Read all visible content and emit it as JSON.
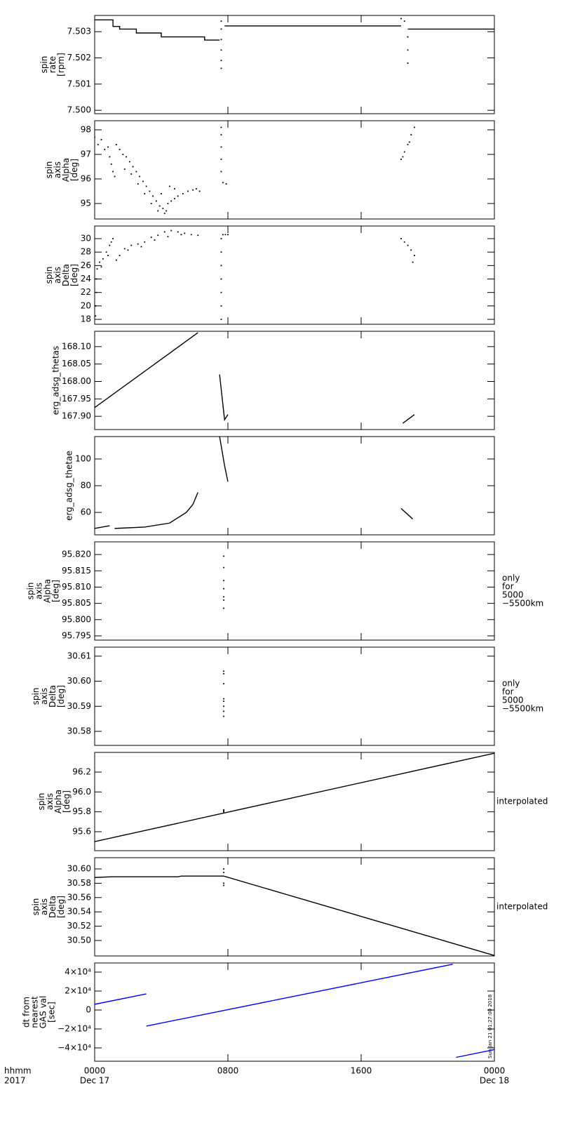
{
  "chart_data": [
    {
      "type": "line",
      "ylabel": [
        "spin",
        "rate",
        "[rpm]"
      ],
      "xlim": [
        0,
        24
      ],
      "ylim": [
        7.49987,
        7.50362
      ],
      "yticks": [
        {
          "value": 7.5,
          "label": "7.500"
        },
        7.501,
        7.502,
        7.503
      ],
      "series": [
        {
          "color": "#000000",
          "x": [
            0,
            1.1,
            1.1,
            1.5,
            1.5,
            2.5,
            2.5,
            4.0,
            4.0,
            6.6,
            6.6,
            7.5,
            7.55,
            7.8,
            18.4,
            18.5,
            18.8,
            24
          ],
          "values": [
            7.50345,
            7.50345,
            7.5032,
            7.5032,
            7.5031,
            7.5031,
            7.50295,
            7.50295,
            7.5028,
            7.5028,
            7.50268,
            7.50268,
            null,
            7.50322,
            7.50322,
            null,
            7.5031,
            7.5031
          ]
        },
        {
          "type": "scatter",
          "color": "#000000",
          "x": [
            7.6,
            7.6,
            7.6,
            7.6,
            7.6,
            7.6,
            18.4,
            18.6,
            18.8,
            18.8,
            18.8
          ],
          "values": [
            7.5016,
            7.5019,
            7.5023,
            7.5027,
            7.5031,
            7.5034,
            7.5035,
            7.5034,
            7.5018,
            7.5023,
            7.5028
          ]
        }
      ]
    },
    {
      "type": "scatter",
      "ylabel": [
        "spin",
        "axis",
        "Alpha",
        "[deg]"
      ],
      "xlim": [
        0,
        24
      ],
      "ylim": [
        94.37,
        98.37
      ],
      "yticks": [
        95,
        96,
        97,
        98
      ],
      "series": [
        {
          "color": "#000000",
          "x": [
            0.0,
            0.2,
            0.4,
            0.6,
            0.8,
            0.9,
            1.0,
            1.1,
            1.2,
            1.3,
            1.5,
            1.7,
            1.9,
            2.1,
            2.3,
            2.5,
            2.7,
            2.9,
            3.1,
            3.3,
            3.5,
            3.7,
            3.9,
            4.1,
            4.3,
            1.8,
            2.2,
            2.6,
            3.0,
            3.4,
            3.8,
            4.2,
            4.0,
            4.4,
            4.6,
            4.8,
            5.0,
            5.3,
            5.6,
            5.9,
            6.1,
            6.3,
            4.5,
            4.8,
            7.6,
            7.6,
            7.6,
            7.6,
            7.6,
            7.7,
            7.9,
            18.4,
            18.5,
            18.6,
            18.8,
            18.9,
            19.0,
            19.2
          ],
          "values": [
            97.7,
            97.4,
            97.6,
            97.2,
            97.3,
            96.9,
            96.6,
            96.3,
            96.1,
            97.4,
            97.2,
            97.0,
            96.9,
            96.7,
            96.5,
            96.3,
            96.1,
            95.9,
            95.7,
            95.5,
            95.3,
            95.1,
            94.9,
            94.8,
            94.7,
            96.4,
            96.2,
            95.8,
            95.4,
            95.0,
            94.7,
            94.6,
            95.4,
            95.0,
            95.1,
            95.2,
            95.3,
            95.4,
            95.5,
            95.55,
            95.6,
            95.5,
            95.7,
            95.6,
            96.3,
            96.8,
            97.3,
            97.8,
            98.1,
            95.85,
            95.8,
            96.8,
            96.9,
            97.1,
            97.4,
            97.5,
            97.8,
            98.1
          ]
        }
      ]
    },
    {
      "type": "scatter",
      "ylabel": [
        "spin",
        "axis",
        "Delta",
        "[deg]"
      ],
      "xlim": [
        0,
        24
      ],
      "ylim": [
        17.27,
        31.88
      ],
      "yticks": [
        18,
        20,
        22,
        24,
        26,
        28,
        30
      ],
      "series": [
        {
          "color": "#000000",
          "x": [
            0.05,
            0.05,
            0.1,
            0.1,
            0.15,
            0.3,
            0.5,
            0.7,
            0.9,
            0.4,
            0.8,
            1.0,
            1.1,
            1.3,
            1.5,
            1.8,
            2.2,
            2.6,
            3.0,
            3.4,
            3.8,
            4.2,
            4.6,
            5.0,
            5.4,
            5.8,
            6.2,
            2.0,
            2.8,
            3.6,
            4.4,
            5.2,
            7.6,
            7.6,
            7.6,
            7.6,
            7.6,
            7.6,
            7.6,
            7.7,
            7.85,
            8.0,
            18.4,
            18.6,
            18.8,
            19.0,
            19.2,
            19.1
          ],
          "values": [
            18.5,
            20,
            22,
            24,
            25.5,
            26.5,
            27,
            28,
            29,
            25.8,
            27.5,
            29.5,
            30,
            26.8,
            27.5,
            28.5,
            29,
            29.2,
            29.5,
            30.2,
            30.5,
            31,
            31.2,
            31,
            30.8,
            30.6,
            30.5,
            28.3,
            28.8,
            29.8,
            30.3,
            30.6,
            18,
            20,
            22,
            24,
            26,
            28,
            30,
            30.6,
            30.6,
            30.6,
            30,
            29.5,
            29,
            28.3,
            27.5,
            26.5
          ]
        }
      ]
    },
    {
      "type": "line",
      "ylabel": [
        "erg_adsg_thetas"
      ],
      "xlim": [
        0,
        24
      ],
      "ylim": [
        167.862,
        168.144
      ],
      "yticks": [
        {
          "value": 167.9,
          "label": "167.90"
        },
        167.95,
        {
          "value": 168.0,
          "label": "168.00"
        },
        168.05,
        {
          "value": 168.1,
          "label": "168.10"
        }
      ],
      "series": [
        {
          "color": "#000000",
          "x": [
            0,
            6.2,
            6.3,
            7.5,
            7.8,
            8.0,
            8.1,
            18.5,
            19.2
          ],
          "values": [
            167.925,
            168.14,
            null,
            168.02,
            167.89,
            167.905,
            null,
            167.88,
            167.905
          ]
        }
      ]
    },
    {
      "type": "line",
      "ylabel": [
        "erg_adsg_thetae"
      ],
      "xlim": [
        0,
        24
      ],
      "ylim": [
        43.2,
        116.8
      ],
      "yticks": [
        60,
        80,
        100
      ],
      "series": [
        {
          "color": "#000000",
          "x": [
            0,
            0.9,
            1.0,
            1.2,
            3,
            4.5,
            5.5,
            5.9,
            6.2,
            6.3,
            7.5,
            7.8,
            8.0,
            8.1,
            18.4,
            19.1
          ],
          "values": [
            48,
            50,
            null,
            48,
            49,
            52,
            60,
            66,
            75,
            null,
            117,
            95,
            83,
            null,
            63,
            55
          ]
        }
      ]
    },
    {
      "type": "scatter",
      "ylabel": [
        "spin",
        "axis",
        "Alpha",
        "[deg]"
      ],
      "xlim": [
        0,
        24
      ],
      "ylim": [
        95.7937,
        95.8239
      ],
      "yticks": [
        95.795,
        {
          "value": 95.8,
          "label": "95.800"
        },
        95.805,
        {
          "value": 95.81,
          "label": "95.810"
        },
        95.815,
        {
          "value": 95.82,
          "label": "95.820"
        }
      ],
      "annotation": [
        "only",
        "for",
        "5000",
        "−5500km"
      ],
      "series": [
        {
          "color": "#000000",
          "x": [
            7.75,
            7.75,
            7.75,
            7.75,
            7.75,
            7.75,
            7.75
          ],
          "values": [
            95.8195,
            95.816,
            95.812,
            95.8095,
            95.807,
            95.806,
            95.8035
          ]
        }
      ]
    },
    {
      "type": "scatter",
      "ylabel": [
        "spin",
        "axis",
        "Delta",
        "[deg]"
      ],
      "xlim": [
        0,
        24
      ],
      "ylim": [
        30.5744,
        30.6136
      ],
      "yticks": [
        30.58,
        30.59,
        {
          "value": 30.6,
          "label": "30.60"
        },
        30.61
      ],
      "annotation": [
        "only",
        "for",
        "5000",
        "−5500km"
      ],
      "series": [
        {
          "color": "#000000",
          "x": [
            7.75,
            7.75,
            7.75,
            7.75,
            7.75,
            7.75,
            7.75,
            7.75
          ],
          "values": [
            30.604,
            30.603,
            30.599,
            30.593,
            30.592,
            30.59,
            30.588,
            30.586
          ]
        }
      ]
    },
    {
      "type": "line",
      "ylabel": [
        "spin",
        "axis",
        "Alpha",
        "[deg]"
      ],
      "xlim": [
        0,
        24
      ],
      "ylim": [
        95.409,
        96.398
      ],
      "yticks": [
        95.6,
        95.8,
        {
          "value": 96.0,
          "label": "96.0"
        },
        96.2
      ],
      "annotation": [
        "interpolated"
      ],
      "series": [
        {
          "color": "#000000",
          "x": [
            0,
            24
          ],
          "values": [
            95.5,
            96.39
          ]
        },
        {
          "type": "scatter",
          "color": "#000000",
          "x": [
            7.75,
            7.75,
            7.75
          ],
          "values": [
            95.8,
            95.81,
            95.82
          ]
        }
      ]
    },
    {
      "type": "line",
      "ylabel": [
        "spin",
        "axis",
        "Delta",
        "[deg]"
      ],
      "xlim": [
        0,
        24
      ],
      "ylim": [
        30.4784,
        30.6157
      ],
      "yticks": [
        {
          "value": 30.5,
          "label": "30.50"
        },
        30.52,
        30.54,
        30.56,
        30.58,
        {
          "value": 30.6,
          "label": "30.60"
        }
      ],
      "annotation": [
        "interpolated"
      ],
      "series": [
        {
          "color": "#000000",
          "x": [
            0,
            1,
            5.0,
            5.2,
            7.75,
            24
          ],
          "values": [
            30.588,
            30.589,
            30.589,
            30.59,
            30.59,
            30.479
          ]
        },
        {
          "type": "scatter",
          "color": "#000000",
          "x": [
            7.75,
            7.75,
            7.75,
            7.75
          ],
          "values": [
            30.6,
            30.595,
            30.58,
            30.577
          ]
        }
      ]
    },
    {
      "type": "line",
      "ylabel": [
        "dt from",
        "nearest",
        "GAS val",
        "[sec]"
      ],
      "xlim": [
        0,
        24
      ],
      "ylim": [
        -54074,
        49630
      ],
      "yticks": [
        {
          "value": -40000,
          "label": "−4×10⁴"
        },
        {
          "value": -20000,
          "label": "−2×10⁴"
        },
        0,
        {
          "value": 20000,
          "label": "2×10⁴"
        },
        {
          "value": 40000,
          "label": "4×10⁴"
        }
      ],
      "stamp": "Sun Jan 21 01:27:00 2018",
      "xticks": [
        {
          "value": 0,
          "label": "0000"
        },
        {
          "value": 8,
          "label": "0800"
        },
        {
          "value": 16,
          "label": "1600"
        },
        {
          "value": 24,
          "label": "0000"
        }
      ],
      "xtick_dates": [
        "Dec 17",
        null,
        null,
        "Dec 18"
      ],
      "xlabel": [
        "hhmm",
        "2017"
      ],
      "series": [
        {
          "color": "#0000ff",
          "x": [
            0,
            3.1,
            3.1,
            3.1,
            21.5,
            21.6,
            21.7,
            24
          ],
          "values": [
            6000,
            17000,
            null,
            -17000,
            48300,
            null,
            -50000,
            -41800
          ]
        }
      ]
    }
  ]
}
